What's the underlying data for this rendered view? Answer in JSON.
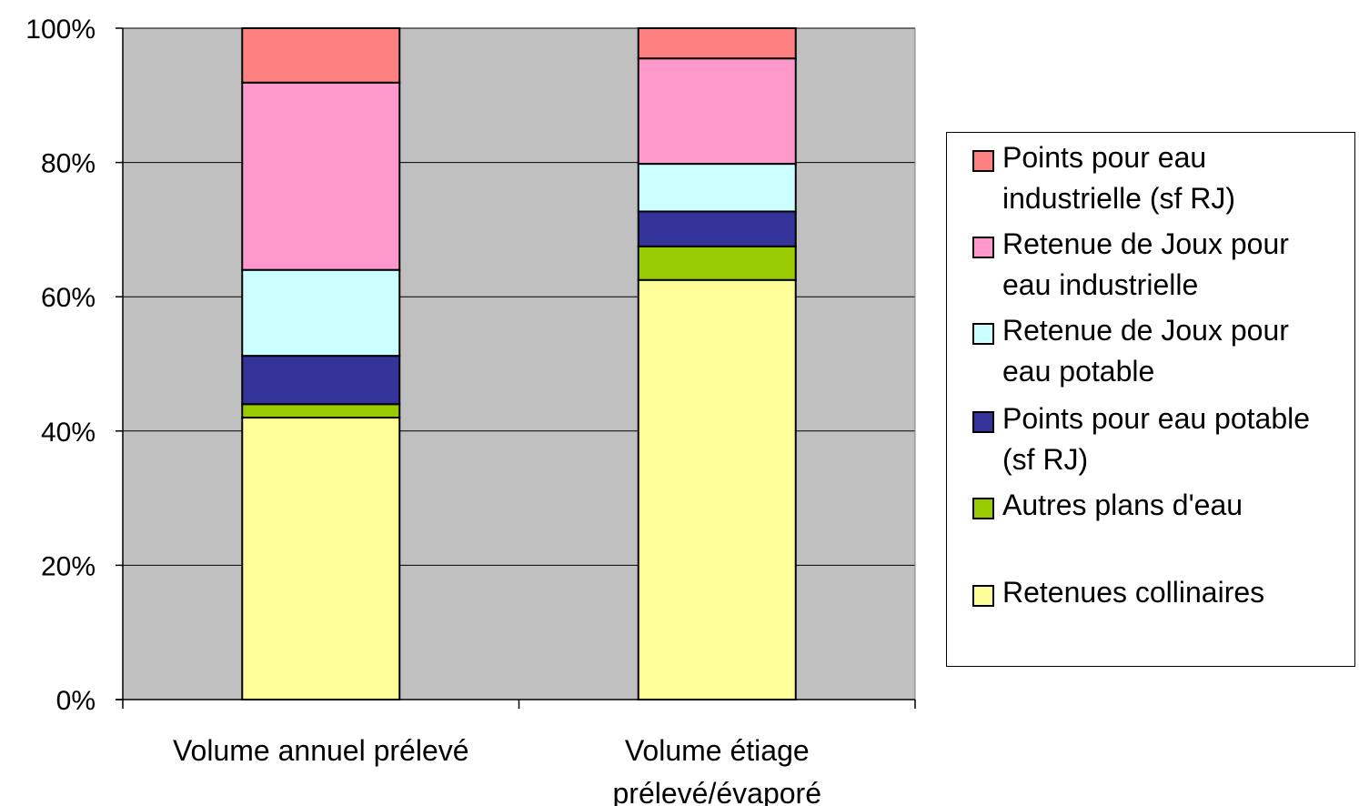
{
  "chart_data": {
    "type": "bar",
    "stacked": "percent",
    "categories": [
      [
        "Volume annuel prélevé"
      ],
      [
        "Volume étiage",
        "prélevé/évaporé"
      ]
    ],
    "ylim": [
      0,
      100
    ],
    "yticks": [
      "0%",
      "20%",
      "40%",
      "60%",
      "80%",
      "100%"
    ],
    "grid": true,
    "legend_position": "right",
    "series": [
      {
        "name": "Retenues collinaires",
        "color": "#ffff99",
        "values": [
          42,
          62.5
        ]
      },
      {
        "name": "Autres plans d'eau",
        "color": "#99cc00",
        "values": [
          2,
          5
        ]
      },
      {
        "name": "Points pour eau potable (sf RJ)",
        "color": "#333399",
        "values": [
          7.2,
          5.2
        ]
      },
      {
        "name": "Retenue de Joux pour eau potable",
        "color": "#ccffff",
        "values": [
          12.8,
          7.1
        ]
      },
      {
        "name": "Retenue de Joux pour eau industrielle",
        "color": "#ff99cc",
        "values": [
          27.9,
          15.7
        ]
      },
      {
        "name": "Points pour eau industrielle (sf RJ)",
        "color": "#ff8080",
        "values": [
          8.1,
          4.5
        ]
      }
    ]
  },
  "legend": {
    "items": [
      {
        "lines": [
          "Points pour eau",
          "industrielle (sf RJ)"
        ],
        "color": "#ff8080"
      },
      {
        "lines": [
          "Retenue de Joux pour",
          "eau industrielle"
        ],
        "color": "#ff99cc"
      },
      {
        "lines": [
          "Retenue de Joux pour",
          "eau potable"
        ],
        "color": "#ccffff"
      },
      {
        "lines": [
          "Points pour eau potable",
          "(sf RJ)"
        ],
        "color": "#333399"
      },
      {
        "lines": [
          "Autres plans d'eau"
        ],
        "color": "#99cc00"
      },
      {
        "lines": [
          "Retenues collinaires"
        ],
        "color": "#ffff99"
      }
    ]
  },
  "colors": {
    "plot_background": "#c0c0c0",
    "gridline": "#000000"
  }
}
